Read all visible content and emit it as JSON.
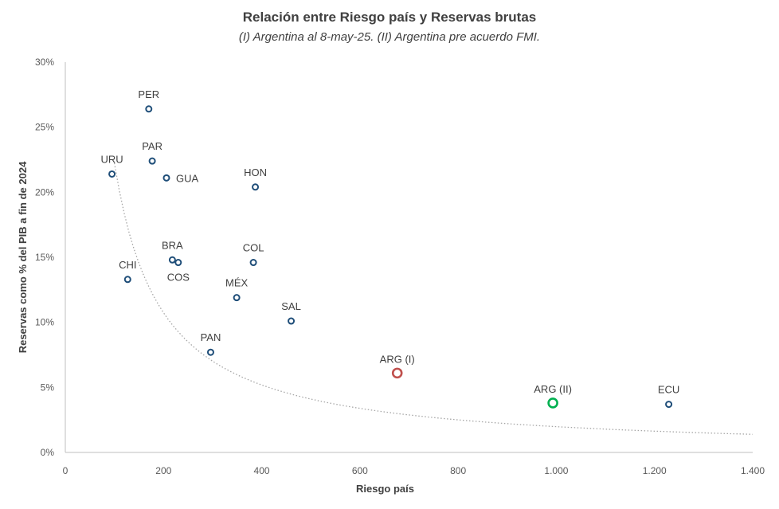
{
  "title": "Relación entre Riesgo país y Reservas brutas",
  "subtitle": "(I) Argentina al 8-may-25. (II) Argentina pre acuerdo FMI.",
  "chart_data": {
    "type": "scatter",
    "title": "Relación entre Riesgo país y Reservas brutas",
    "subtitle": "(I) Argentina al 8-may-25. (II) Argentina pre acuerdo FMI.",
    "xlabel": "Riesgo país",
    "ylabel": "Reservas como % del PIB a fin de 2024",
    "xlim": [
      0,
      1400
    ],
    "ylim": [
      0,
      30
    ],
    "x_ticks": [
      0,
      200,
      400,
      600,
      800,
      1000,
      1200,
      1400
    ],
    "x_tick_labels": [
      "0",
      "200",
      "400",
      "600",
      "800",
      "1.000",
      "1.200",
      "1.400"
    ],
    "y_ticks": [
      0,
      5,
      10,
      15,
      20,
      25,
      30
    ],
    "y_tick_labels": [
      "0%",
      "5%",
      "10%",
      "15%",
      "20%",
      "25%",
      "30%"
    ],
    "grid": false,
    "legend": "none",
    "points": [
      {
        "label": "PER",
        "x": 170,
        "y": 26.4,
        "color": "#1f4e79",
        "label_pos": "above"
      },
      {
        "label": "PAR",
        "x": 177,
        "y": 22.4,
        "color": "#1f4e79",
        "label_pos": "above"
      },
      {
        "label": "URU",
        "x": 95,
        "y": 21.4,
        "color": "#1f4e79",
        "label_pos": "above"
      },
      {
        "label": "GUA",
        "x": 206,
        "y": 21.1,
        "color": "#1f4e79",
        "label_pos": "right"
      },
      {
        "label": "HON",
        "x": 387,
        "y": 20.4,
        "color": "#1f4e79",
        "label_pos": "above"
      },
      {
        "label": "BRA",
        "x": 218,
        "y": 14.8,
        "color": "#1f4e79",
        "label_pos": "above"
      },
      {
        "label": "COS",
        "x": 230,
        "y": 14.6,
        "color": "#1f4e79",
        "label_pos": "below"
      },
      {
        "label": "COL",
        "x": 383,
        "y": 14.6,
        "color": "#1f4e79",
        "label_pos": "above"
      },
      {
        "label": "CHI",
        "x": 127,
        "y": 13.3,
        "color": "#1f4e79",
        "label_pos": "above"
      },
      {
        "label": "MÉX",
        "x": 349,
        "y": 11.9,
        "color": "#1f4e79",
        "label_pos": "above"
      },
      {
        "label": "SAL",
        "x": 460,
        "y": 10.1,
        "color": "#1f4e79",
        "label_pos": "above"
      },
      {
        "label": "PAN",
        "x": 296,
        "y": 7.7,
        "color": "#1f4e79",
        "label_pos": "above"
      },
      {
        "label": "ARG (I)",
        "x": 676,
        "y": 6.1,
        "color": "#c0504d",
        "label_pos": "above",
        "highlight": true
      },
      {
        "label": "ARG (II)",
        "x": 993,
        "y": 3.8,
        "color": "#00b050",
        "label_pos": "above",
        "highlight": true
      },
      {
        "label": "ECU",
        "x": 1229,
        "y": 3.7,
        "color": "#1f4e79",
        "label_pos": "above"
      }
    ],
    "trendline": {
      "type": "power",
      "style": "dotted",
      "color": "#a6a6a6",
      "x_start": 100,
      "x_end": 1400,
      "a": 2800,
      "b": -1.05
    }
  }
}
